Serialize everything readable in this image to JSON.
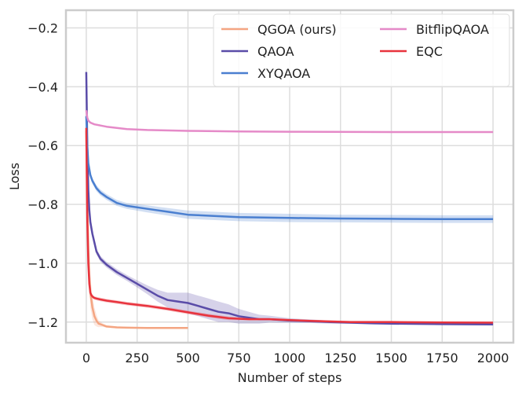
{
  "chart_data": {
    "type": "line",
    "title": "",
    "xlabel": "Number of steps",
    "ylabel": "Loss",
    "xlim": [
      -100,
      2100
    ],
    "ylim": [
      -1.27,
      -0.14
    ],
    "xticks": [
      0,
      250,
      500,
      750,
      1000,
      1250,
      1500,
      1750,
      2000
    ],
    "xtick_labels": [
      "0",
      "250",
      "500",
      "750",
      "1000",
      "1250",
      "1500",
      "1750",
      "2000"
    ],
    "yticks": [
      -0.2,
      -0.4,
      -0.6,
      -0.8,
      -1.0,
      -1.2
    ],
    "ytick_labels": [
      "−0.2",
      "−0.4",
      "−0.6",
      "−0.8",
      "−1.0",
      "−1.2"
    ],
    "grid": true,
    "legend_position": "top-right",
    "legend_columns": 2,
    "series": [
      {
        "name": "QGOA (ours)",
        "color": "#f4a582",
        "x": [
          0,
          5,
          10,
          15,
          20,
          30,
          40,
          50,
          60,
          80,
          100,
          150,
          200,
          300,
          400,
          500
        ],
        "y": [
          -0.55,
          -0.8,
          -0.95,
          -1.04,
          -1.1,
          -1.15,
          -1.18,
          -1.195,
          -1.205,
          -1.21,
          -1.215,
          -1.218,
          -1.219,
          -1.22,
          -1.22,
          -1.22
        ],
        "band": [
          0.05,
          0.06,
          0.06,
          0.05,
          0.05,
          0.04,
          0.03,
          0.02,
          0.012,
          0.006,
          0.004,
          0.003,
          0.003,
          0.002,
          0.002,
          0.002
        ]
      },
      {
        "name": "QAOA",
        "color": "#5a4ca8",
        "x": [
          0,
          5,
          10,
          15,
          20,
          30,
          40,
          50,
          70,
          100,
          150,
          200,
          250,
          300,
          350,
          400,
          450,
          500,
          550,
          600,
          650,
          700,
          750,
          800,
          850,
          900,
          1000,
          1100,
          1200,
          1300,
          1400,
          1500,
          1750,
          2000
        ],
        "y": [
          -0.35,
          -0.6,
          -0.75,
          -0.82,
          -0.86,
          -0.9,
          -0.93,
          -0.96,
          -0.985,
          -1.005,
          -1.03,
          -1.05,
          -1.07,
          -1.09,
          -1.11,
          -1.125,
          -1.13,
          -1.135,
          -1.145,
          -1.155,
          -1.165,
          -1.17,
          -1.18,
          -1.185,
          -1.19,
          -1.19,
          -1.195,
          -1.197,
          -1.2,
          -1.202,
          -1.204,
          -1.205,
          -1.207,
          -1.208
        ],
        "band": [
          0.01,
          0.02,
          0.02,
          0.015,
          0.012,
          0.01,
          0.01,
          0.01,
          0.01,
          0.01,
          0.01,
          0.01,
          0.012,
          0.015,
          0.02,
          0.025,
          0.03,
          0.035,
          0.035,
          0.035,
          0.035,
          0.03,
          0.025,
          0.02,
          0.015,
          0.012,
          0.008,
          0.006,
          0.005,
          0.004,
          0.004,
          0.004,
          0.003,
          0.003
        ]
      },
      {
        "name": "XYQAOA",
        "color": "#4a7fd0",
        "x": [
          0,
          5,
          10,
          20,
          30,
          50,
          70,
          100,
          150,
          200,
          300,
          400,
          500,
          750,
          1000,
          1250,
          1500,
          1750,
          2000
        ],
        "y": [
          -0.5,
          -0.6,
          -0.66,
          -0.7,
          -0.72,
          -0.745,
          -0.76,
          -0.775,
          -0.795,
          -0.805,
          -0.815,
          -0.825,
          -0.835,
          -0.843,
          -0.846,
          -0.848,
          -0.849,
          -0.85,
          -0.85
        ],
        "band": [
          0.02,
          0.02,
          0.02,
          0.012,
          0.01,
          0.01,
          0.01,
          0.01,
          0.01,
          0.01,
          0.012,
          0.013,
          0.014,
          0.014,
          0.014,
          0.013,
          0.013,
          0.013,
          0.013
        ]
      },
      {
        "name": "BitflipQAOA",
        "color": "#e58ac8",
        "x": [
          0,
          5,
          10,
          20,
          40,
          70,
          100,
          150,
          200,
          300,
          500,
          750,
          1000,
          1500,
          2000
        ],
        "y": [
          -0.48,
          -0.505,
          -0.515,
          -0.522,
          -0.528,
          -0.532,
          -0.536,
          -0.54,
          -0.544,
          -0.547,
          -0.55,
          -0.552,
          -0.553,
          -0.554,
          -0.554
        ],
        "band": [
          0.003,
          0.003,
          0.003,
          0.002,
          0.002,
          0.002,
          0.002,
          0.002,
          0.002,
          0.002,
          0.002,
          0.002,
          0.002,
          0.002,
          0.002
        ]
      },
      {
        "name": "EQC",
        "color": "#e8333d",
        "x": [
          0,
          5,
          10,
          15,
          20,
          25,
          30,
          40,
          50,
          70,
          100,
          150,
          200,
          300,
          400,
          500,
          600,
          700,
          800,
          900,
          1000,
          1100,
          1200,
          1300,
          1500,
          1750,
          2000
        ],
        "y": [
          -0.54,
          -0.85,
          -1.0,
          -1.07,
          -1.1,
          -1.108,
          -1.113,
          -1.118,
          -1.12,
          -1.123,
          -1.127,
          -1.132,
          -1.137,
          -1.145,
          -1.155,
          -1.167,
          -1.178,
          -1.187,
          -1.19,
          -1.19,
          -1.193,
          -1.196,
          -1.198,
          -1.2,
          -1.2,
          -1.201,
          -1.202
        ],
        "band": [
          0.01,
          0.01,
          0.01,
          0.008,
          0.006,
          0.006,
          0.006,
          0.006,
          0.006,
          0.006,
          0.006,
          0.006,
          0.006,
          0.006,
          0.006,
          0.006,
          0.006,
          0.006,
          0.004,
          0.004,
          0.004,
          0.004,
          0.004,
          0.004,
          0.004,
          0.003,
          0.003
        ]
      }
    ]
  }
}
